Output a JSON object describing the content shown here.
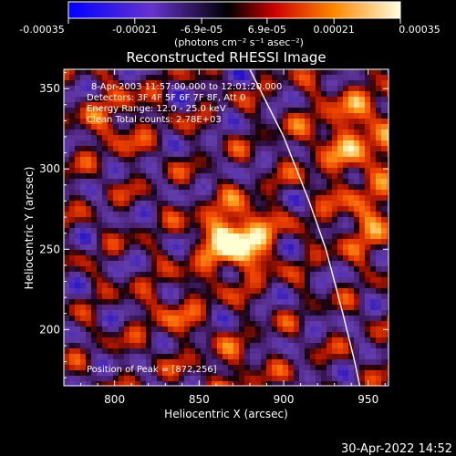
{
  "colorbar": {
    "ticks": [
      "-0.00035",
      "-0.00021",
      "-6.9e-05",
      "6.9e-05",
      "0.00021",
      "0.00035"
    ],
    "tick_values": [
      -0.00035,
      -0.00021,
      -6.9e-05,
      6.9e-05,
      0.00021,
      0.00035
    ],
    "range": [
      -0.00035,
      0.00035
    ],
    "unit_label": "(photons cm⁻² s⁻¹ asec⁻²)",
    "colors": [
      "#0000ff",
      "#6633cc",
      "#000000",
      "#ff0000",
      "#ffa500",
      "#ffffe0"
    ]
  },
  "plot": {
    "title": "Reconstructed RHESSI Image",
    "info": [
      "8-Apr-2003 11:57:00.000 to 12:01:20.000",
      "Detectors: 3F 4F 5F 6F 7F 8F, Att 0",
      "Energy Range: 12.0 - 25.0 keV",
      "Clean     Total counts: 2.78E+03"
    ],
    "peak_text": "Position of Peak = [872,256]",
    "footer_date": "30-Apr-2022 14:52"
  },
  "chart_data": {
    "type": "heatmap",
    "title": "Reconstructed RHESSI Image",
    "xlabel": "Heliocentric X (arcsec)",
    "ylabel": "Heliocentric Y (arcsec)",
    "xlim": [
      770,
      962
    ],
    "ylim": [
      165,
      362
    ],
    "xticks": [
      800,
      850,
      900,
      950
    ],
    "yticks": [
      200,
      250,
      300,
      350
    ],
    "peak": [
      872,
      256
    ],
    "limb_curve": [
      [
        880,
        362
      ],
      [
        900,
        320
      ],
      [
        915,
        280
      ],
      [
        925,
        250
      ],
      [
        935,
        210
      ],
      [
        942,
        180
      ],
      [
        945,
        165
      ]
    ]
  }
}
